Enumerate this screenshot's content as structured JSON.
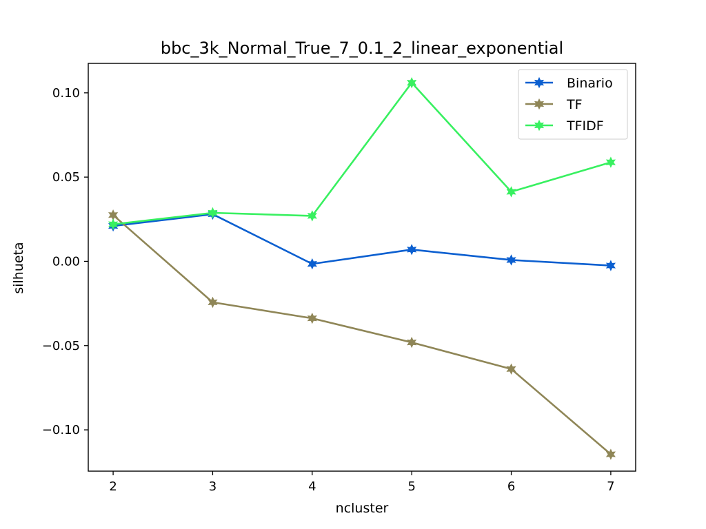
{
  "chart_data": {
    "type": "line",
    "title": "bbc_3k_Normal_True_7_0.1_2_linear_exponential",
    "xlabel": "ncluster",
    "ylabel": "silhueta",
    "x": [
      2,
      3,
      4,
      5,
      6,
      7
    ],
    "x_tick_labels": [
      "2",
      "3",
      "4",
      "5",
      "6",
      "7"
    ],
    "y_ticks": [
      0.1,
      0.05,
      0.0,
      -0.05,
      -0.1
    ],
    "y_tick_labels": [
      "0.10",
      "0.05",
      "0.00",
      "−0.05",
      "−0.10"
    ],
    "xlim": [
      1.75,
      7.25
    ],
    "ylim": [
      -0.1245,
      0.1175
    ],
    "grid": false,
    "legend_position": "top-right",
    "series": [
      {
        "name": "Binario",
        "color": "#0b5fd0",
        "marker": "star",
        "values": [
          0.021,
          0.028,
          -0.0015,
          0.007,
          0.0008,
          -0.0025
        ]
      },
      {
        "name": "TF",
        "color": "#8f8657",
        "marker": "star",
        "values": [
          0.0275,
          -0.0243,
          -0.0338,
          -0.0481,
          -0.0639,
          -0.1145
        ]
      },
      {
        "name": "TFIDF",
        "color": "#38f060",
        "marker": "star",
        "values": [
          0.022,
          0.0288,
          0.027,
          0.106,
          0.0413,
          0.0588
        ]
      }
    ]
  }
}
